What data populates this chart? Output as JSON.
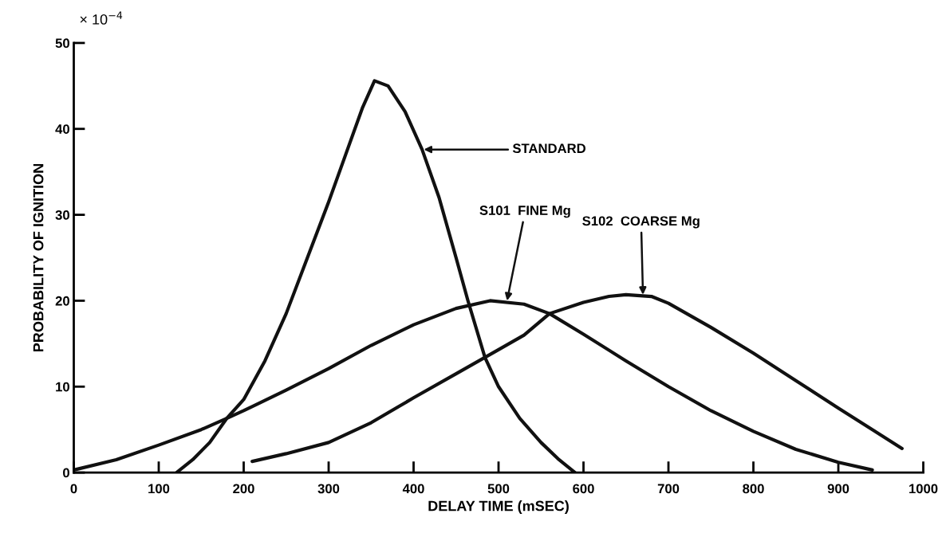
{
  "chart_data": {
    "type": "line",
    "xlabel": "DELAY TIME (mSEC)",
    "ylabel": "PROBABILITY OF IGNITION",
    "xlim": [
      0,
      1000
    ],
    "xticks": [
      0,
      100,
      200,
      300,
      400,
      500,
      600,
      700,
      800,
      900,
      1000
    ],
    "ylim": [
      0,
      50
    ],
    "yticks": [
      0,
      10,
      20,
      30,
      40,
      50
    ],
    "grid": false,
    "marker": "none",
    "line_style": "solid",
    "series": [
      {
        "color": "#111111",
        "x": [
          121,
          140,
          160,
          180,
          200,
          225,
          250,
          275,
          300,
          320,
          340,
          354,
          370,
          390,
          410,
          430,
          450,
          464,
          484,
          500,
          525,
          550,
          570,
          590
        ],
        "values": [
          0,
          1.5,
          3.5,
          6.3,
          8.5,
          13,
          18.5,
          25,
          31.5,
          37,
          42.5,
          45.6,
          45,
          42,
          37.6,
          32,
          25,
          20,
          13.4,
          10,
          6.3,
          3.5,
          1.6,
          0
        ]
      },
      {
        "color": "#111111",
        "x": [
          0,
          50,
          100,
          150,
          180,
          200,
          250,
          300,
          350,
          400,
          450,
          490,
          530,
          560,
          600,
          650,
          700,
          750,
          800,
          850,
          900,
          940
        ],
        "values": [
          0.3,
          1.5,
          3.2,
          5,
          6.3,
          7.2,
          9.6,
          12.1,
          14.8,
          17.2,
          19.1,
          20,
          19.6,
          18.5,
          16.1,
          13,
          10,
          7.2,
          4.8,
          2.7,
          1.2,
          0.3
        ]
      },
      {
        "color": "#111111",
        "x": [
          210,
          250,
          300,
          350,
          400,
          450,
          500,
          530,
          560,
          600,
          630,
          650,
          680,
          700,
          750,
          800,
          850,
          900,
          940,
          975
        ],
        "values": [
          1.3,
          2.2,
          3.5,
          5.8,
          8.7,
          11.5,
          14.3,
          16,
          18.5,
          19.8,
          20.5,
          20.7,
          20.5,
          19.7,
          16.9,
          13.9,
          10.7,
          7.5,
          5,
          2.8
        ]
      }
    ],
    "annotations": [
      {
        "text": "STANDARD",
        "x": 412,
        "y": 37.6
      },
      {
        "text": "S101  FINE Mg",
        "x": 510,
        "y": 20
      },
      {
        "text": "S102  COARSE Mg",
        "x": 670,
        "y": 20.7
      },
      "× 10$^{−4}$"
    ]
  }
}
